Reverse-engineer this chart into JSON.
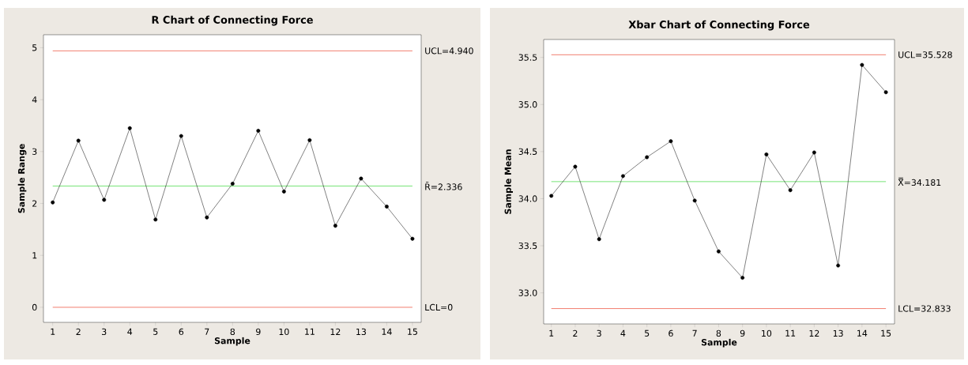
{
  "chart_data": [
    {
      "type": "line",
      "title": "R Chart of Connecting Force",
      "xlabel": "Sample",
      "ylabel": "Sample Range",
      "color": "#000000",
      "marker": "circle",
      "line_style": "solid",
      "x": [
        1,
        2,
        3,
        4,
        5,
        6,
        7,
        8,
        9,
        10,
        11,
        12,
        13,
        14,
        15
      ],
      "values": [
        2.02,
        3.21,
        2.07,
        3.45,
        1.69,
        3.3,
        1.73,
        2.38,
        3.4,
        2.23,
        3.22,
        1.57,
        2.48,
        1.94,
        1.32
      ],
      "xlim": [
        0.64,
        15.34
      ],
      "ylim": [
        -0.29,
        5.25
      ],
      "xticks": [
        1,
        2,
        3,
        4,
        5,
        6,
        7,
        8,
        9,
        10,
        11,
        12,
        13,
        14,
        15
      ],
      "yticks": [
        0,
        1,
        2,
        3,
        4,
        5
      ],
      "ref_lines": [
        {
          "axis": "y",
          "value": 4.94,
          "label": "UCL=4.940",
          "color": "#f07060"
        },
        {
          "axis": "y",
          "value": 2.336,
          "label": "R̄=2.336",
          "color": "#66e066"
        },
        {
          "axis": "y",
          "value": 0,
          "label": "LCL=0",
          "color": "#f07060"
        }
      ]
    },
    {
      "type": "line",
      "title": "Xbar Chart of Connecting Force",
      "xlabel": "Sample",
      "ylabel": "Sample Mean",
      "color": "#000000",
      "marker": "circle",
      "line_style": "solid",
      "x": [
        1,
        2,
        3,
        4,
        5,
        6,
        7,
        8,
        9,
        10,
        11,
        12,
        13,
        14,
        15
      ],
      "values": [
        34.03,
        34.34,
        33.57,
        34.24,
        34.44,
        34.61,
        33.98,
        33.44,
        33.16,
        34.47,
        34.09,
        34.49,
        33.29,
        35.42,
        35.13
      ],
      "xlim": [
        0.68,
        15.36
      ],
      "ylim": [
        32.67,
        35.69
      ],
      "xticks": [
        1,
        2,
        3,
        4,
        5,
        6,
        7,
        8,
        9,
        10,
        11,
        12,
        13,
        14,
        15
      ],
      "yticks": [
        {
          "value": 33,
          "label": "33.0"
        },
        33.5,
        {
          "value": 34,
          "label": "34.0"
        },
        34.5,
        {
          "value": 35,
          "label": "35.0"
        },
        35.5
      ],
      "ref_lines": [
        {
          "axis": "y",
          "value": 35.528,
          "label": "UCL=35.528",
          "color": "#f07060"
        },
        {
          "axis": "y",
          "value": 34.181,
          "label": "X̿=34.181",
          "color": "#66e066"
        },
        {
          "axis": "y",
          "value": 32.833,
          "label": "LCL=32.833",
          "color": "#f07060"
        }
      ]
    }
  ]
}
